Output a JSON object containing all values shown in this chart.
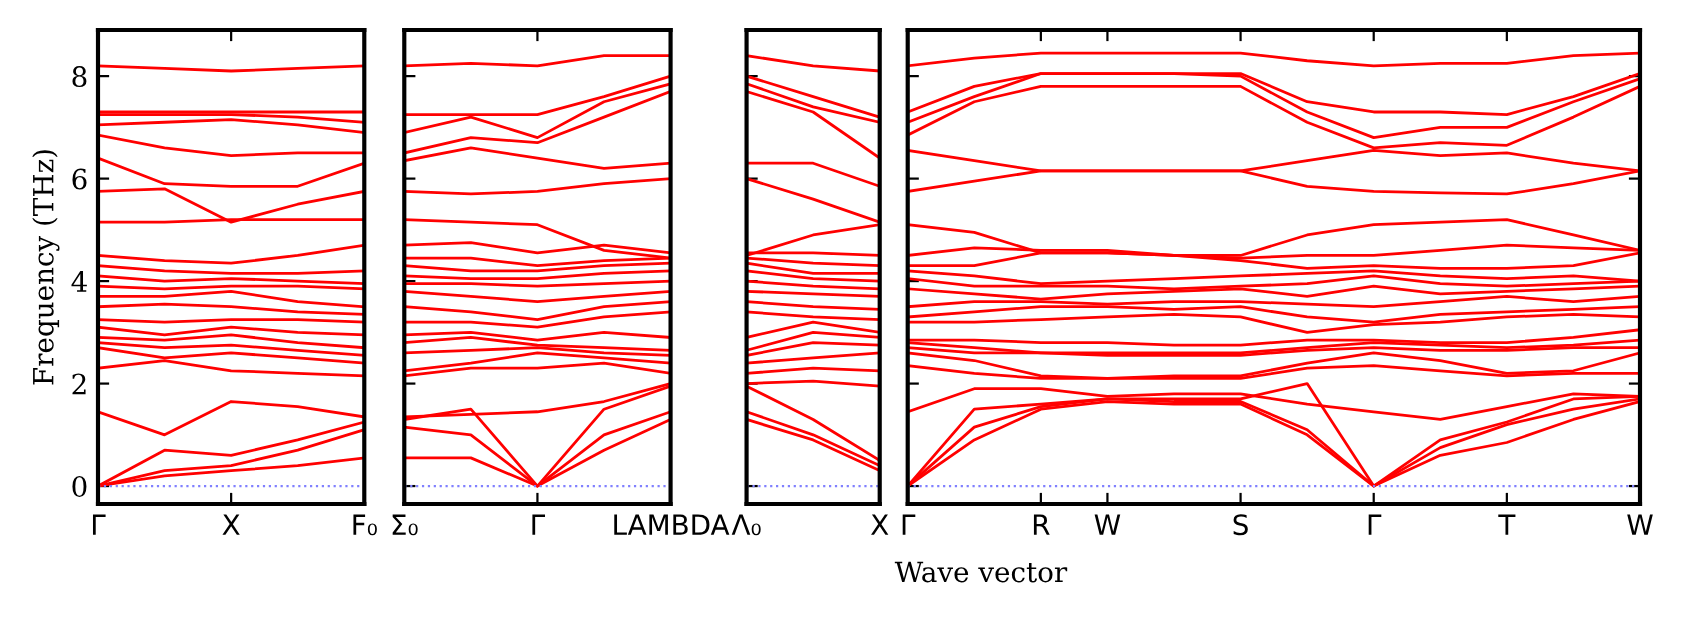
{
  "chart_data": [
    {
      "type": "line",
      "ylabel": "Frequency (THz)",
      "categories": [
        "Γ",
        null,
        "X",
        null,
        "F₀"
      ],
      "ylim": [
        -0.35,
        8.9
      ],
      "yticks": [
        0,
        2,
        4,
        6,
        8
      ],
      "grid": false,
      "legend": false,
      "ref_lines": [
        {
          "axis": "y",
          "value": 0,
          "color": "#8080ff",
          "line_style": "dotted"
        }
      ],
      "series": [
        {
          "color": "#ff0000",
          "values": [
            0,
            0.2,
            0.3,
            0.4,
            0.55
          ]
        },
        {
          "color": "#ff0000",
          "values": [
            0,
            0.3,
            0.4,
            0.7,
            1.1
          ]
        },
        {
          "color": "#ff0000",
          "values": [
            0,
            0.7,
            0.6,
            0.9,
            1.25
          ]
        },
        {
          "color": "#ff0000",
          "values": [
            1.45,
            1.0,
            1.65,
            1.55,
            1.35
          ]
        },
        {
          "color": "#ff0000",
          "values": [
            2.3,
            2.45,
            2.25,
            2.2,
            2.15
          ]
        },
        {
          "color": "#ff0000",
          "values": [
            2.7,
            2.5,
            2.6,
            2.5,
            2.4
          ]
        },
        {
          "color": "#ff0000",
          "values": [
            2.8,
            2.7,
            2.75,
            2.65,
            2.55
          ]
        },
        {
          "color": "#ff0000",
          "values": [
            2.9,
            2.85,
            2.95,
            2.8,
            2.7
          ]
        },
        {
          "color": "#ff0000",
          "values": [
            3.1,
            2.95,
            3.1,
            3.0,
            2.95
          ]
        },
        {
          "color": "#ff0000",
          "values": [
            3.25,
            3.2,
            3.25,
            3.25,
            3.2
          ]
        },
        {
          "color": "#ff0000",
          "values": [
            3.5,
            3.55,
            3.5,
            3.4,
            3.35
          ]
        },
        {
          "color": "#ff0000",
          "values": [
            3.7,
            3.7,
            3.8,
            3.6,
            3.5
          ]
        },
        {
          "color": "#ff0000",
          "values": [
            3.9,
            3.85,
            3.9,
            3.9,
            3.85
          ]
        },
        {
          "color": "#ff0000",
          "values": [
            4.1,
            4.0,
            4.05,
            4.0,
            3.95
          ]
        },
        {
          "color": "#ff0000",
          "values": [
            4.3,
            4.2,
            4.15,
            4.15,
            4.2
          ]
        },
        {
          "color": "#ff0000",
          "values": [
            4.5,
            4.4,
            4.35,
            4.5,
            4.7
          ]
        },
        {
          "color": "#ff0000",
          "values": [
            5.15,
            5.15,
            5.2,
            5.2,
            5.2
          ]
        },
        {
          "color": "#ff0000",
          "values": [
            5.75,
            5.8,
            5.15,
            5.5,
            5.75
          ]
        },
        {
          "color": "#ff0000",
          "values": [
            6.4,
            5.9,
            5.85,
            5.85,
            6.3
          ]
        },
        {
          "color": "#ff0000",
          "values": [
            6.85,
            6.6,
            6.45,
            6.5,
            6.5
          ]
        },
        {
          "color": "#ff0000",
          "values": [
            7.05,
            7.1,
            7.15,
            7.05,
            6.9
          ]
        },
        {
          "color": "#ff0000",
          "values": [
            7.25,
            7.25,
            7.25,
            7.2,
            7.1
          ]
        },
        {
          "color": "#ff0000",
          "values": [
            7.3,
            7.3,
            7.3,
            7.3,
            7.3
          ]
        },
        {
          "color": "#ff0000",
          "values": [
            8.2,
            8.15,
            8.1,
            8.15,
            8.2
          ]
        }
      ]
    },
    {
      "type": "line",
      "categories": [
        "Σ₀",
        null,
        "Γ",
        null,
        "LAMBDA"
      ],
      "ylim": [
        -0.35,
        8.9
      ],
      "yticks": [
        {
          "value": 0,
          "label": null
        },
        {
          "value": 2,
          "label": null
        },
        {
          "value": 4,
          "label": null
        },
        {
          "value": 6,
          "label": null
        },
        {
          "value": 8,
          "label": null
        }
      ],
      "tick_labels": "x",
      "grid": false,
      "legend": false,
      "ref_lines": [
        {
          "axis": "y",
          "value": 0,
          "color": "#8080ff",
          "line_style": "dotted"
        }
      ],
      "series": [
        {
          "color": "#ff0000",
          "values": [
            0.55,
            0.55,
            0,
            0.7,
            1.3
          ]
        },
        {
          "color": "#ff0000",
          "values": [
            1.15,
            1.0,
            0,
            1.0,
            1.45
          ]
        },
        {
          "color": "#ff0000",
          "values": [
            1.3,
            1.5,
            0,
            1.5,
            1.95
          ]
        },
        {
          "color": "#ff0000",
          "values": [
            1.35,
            1.4,
            1.45,
            1.65,
            2.0
          ]
        },
        {
          "color": "#ff0000",
          "values": [
            2.15,
            2.3,
            2.3,
            2.4,
            2.2
          ]
        },
        {
          "color": "#ff0000",
          "values": [
            2.25,
            2.4,
            2.6,
            2.5,
            2.4
          ]
        },
        {
          "color": "#ff0000",
          "values": [
            2.6,
            2.65,
            2.7,
            2.6,
            2.55
          ]
        },
        {
          "color": "#ff0000",
          "values": [
            2.8,
            2.9,
            2.75,
            2.7,
            2.65
          ]
        },
        {
          "color": "#ff0000",
          "values": [
            2.95,
            3.0,
            2.85,
            3.0,
            2.9
          ]
        },
        {
          "color": "#ff0000",
          "values": [
            3.2,
            3.2,
            3.1,
            3.3,
            3.4
          ]
        },
        {
          "color": "#ff0000",
          "values": [
            3.5,
            3.4,
            3.25,
            3.5,
            3.6
          ]
        },
        {
          "color": "#ff0000",
          "values": [
            3.8,
            3.7,
            3.6,
            3.7,
            3.8
          ]
        },
        {
          "color": "#ff0000",
          "values": [
            3.95,
            3.95,
            3.9,
            3.95,
            4.0
          ]
        },
        {
          "color": "#ff0000",
          "values": [
            4.1,
            4.05,
            4.05,
            4.15,
            4.2
          ]
        },
        {
          "color": "#ff0000",
          "values": [
            4.3,
            4.2,
            4.2,
            4.3,
            4.35
          ]
        },
        {
          "color": "#ff0000",
          "values": [
            4.45,
            4.45,
            4.3,
            4.4,
            4.45
          ]
        },
        {
          "color": "#ff0000",
          "values": [
            4.7,
            4.75,
            4.55,
            4.7,
            4.55
          ]
        },
        {
          "color": "#ff0000",
          "values": [
            5.2,
            5.15,
            5.1,
            4.6,
            4.45
          ]
        },
        {
          "color": "#ff0000",
          "values": [
            5.75,
            5.7,
            5.75,
            5.9,
            6.0
          ]
        },
        {
          "color": "#ff0000",
          "values": [
            6.35,
            6.6,
            6.4,
            6.2,
            6.3
          ]
        },
        {
          "color": "#ff0000",
          "values": [
            6.5,
            6.8,
            6.7,
            7.2,
            7.7
          ]
        },
        {
          "color": "#ff0000",
          "values": [
            6.9,
            7.2,
            6.8,
            7.5,
            7.85
          ]
        },
        {
          "color": "#ff0000",
          "values": [
            7.25,
            7.25,
            7.25,
            7.6,
            8.0
          ]
        },
        {
          "color": "#ff0000",
          "values": [
            8.2,
            8.25,
            8.2,
            8.4,
            8.4
          ]
        }
      ]
    },
    {
      "type": "line",
      "categories": [
        "Λ₀",
        null,
        "X"
      ],
      "ylim": [
        -0.35,
        8.9
      ],
      "yticks": [
        {
          "value": 0,
          "label": null
        },
        {
          "value": 2,
          "label": null
        },
        {
          "value": 4,
          "label": null
        },
        {
          "value": 6,
          "label": null
        },
        {
          "value": 8,
          "label": null
        }
      ],
      "tick_labels": "x",
      "grid": false,
      "legend": false,
      "ref_lines": [
        {
          "axis": "y",
          "value": 0,
          "color": "#8080ff",
          "line_style": "dotted"
        }
      ],
      "series": [
        {
          "color": "#ff0000",
          "values": [
            1.3,
            0.9,
            0.3
          ]
        },
        {
          "color": "#ff0000",
          "values": [
            1.45,
            1.0,
            0.4
          ]
        },
        {
          "color": "#ff0000",
          "values": [
            1.95,
            1.3,
            0.5
          ]
        },
        {
          "color": "#ff0000",
          "values": [
            2.0,
            2.05,
            1.95
          ]
        },
        {
          "color": "#ff0000",
          "values": [
            2.2,
            2.3,
            2.25
          ]
        },
        {
          "color": "#ff0000",
          "values": [
            2.4,
            2.5,
            2.6
          ]
        },
        {
          "color": "#ff0000",
          "values": [
            2.55,
            2.8,
            2.75
          ]
        },
        {
          "color": "#ff0000",
          "values": [
            2.65,
            3.0,
            2.9
          ]
        },
        {
          "color": "#ff0000",
          "values": [
            2.9,
            3.2,
            3.0
          ]
        },
        {
          "color": "#ff0000",
          "values": [
            3.4,
            3.3,
            3.25
          ]
        },
        {
          "color": "#ff0000",
          "values": [
            3.6,
            3.5,
            3.45
          ]
        },
        {
          "color": "#ff0000",
          "values": [
            3.8,
            3.75,
            3.7
          ]
        },
        {
          "color": "#ff0000",
          "values": [
            4.0,
            3.9,
            3.85
          ]
        },
        {
          "color": "#ff0000",
          "values": [
            4.2,
            4.05,
            4.0
          ]
        },
        {
          "color": "#ff0000",
          "values": [
            4.35,
            4.15,
            4.15
          ]
        },
        {
          "color": "#ff0000",
          "values": [
            4.45,
            4.35,
            4.3
          ]
        },
        {
          "color": "#ff0000",
          "values": [
            4.55,
            4.55,
            4.5
          ]
        },
        {
          "color": "#ff0000",
          "values": [
            4.5,
            4.9,
            5.1
          ]
        },
        {
          "color": "#ff0000",
          "values": [
            6.0,
            5.6,
            5.15
          ]
        },
        {
          "color": "#ff0000",
          "values": [
            6.3,
            6.3,
            5.85
          ]
        },
        {
          "color": "#ff0000",
          "values": [
            7.7,
            7.3,
            6.4
          ]
        },
        {
          "color": "#ff0000",
          "values": [
            7.85,
            7.4,
            7.1
          ]
        },
        {
          "color": "#ff0000",
          "values": [
            8.0,
            7.6,
            7.2
          ]
        },
        {
          "color": "#ff0000",
          "values": [
            8.4,
            8.2,
            8.1
          ]
        }
      ]
    },
    {
      "type": "line",
      "xlabel": "Wave vector",
      "categories": [
        "Γ",
        null,
        "R",
        "W",
        null,
        "S",
        null,
        "Γ",
        null,
        "T",
        null,
        "W"
      ],
      "ylim": [
        -0.35,
        8.9
      ],
      "yticks": [
        {
          "value": 0,
          "label": null
        },
        {
          "value": 2,
          "label": null
        },
        {
          "value": 4,
          "label": null
        },
        {
          "value": 6,
          "label": null
        },
        {
          "value": 8,
          "label": null
        }
      ],
      "tick_labels": "x",
      "grid": false,
      "legend": false,
      "ref_lines": [
        {
          "axis": "y",
          "value": 0,
          "color": "#8080ff",
          "line_style": "dotted"
        }
      ],
      "series": [
        {
          "color": "#ff0000",
          "values": [
            0,
            0.9,
            1.5,
            1.65,
            1.6,
            1.6,
            1.0,
            0,
            0.6,
            0.85,
            1.3,
            1.65
          ]
        },
        {
          "color": "#ff0000",
          "values": [
            0,
            1.15,
            1.55,
            1.7,
            1.65,
            1.65,
            1.1,
            0,
            0.75,
            1.2,
            1.5,
            1.7
          ]
        },
        {
          "color": "#ff0000",
          "values": [
            0,
            1.5,
            1.6,
            1.7,
            1.7,
            1.7,
            2.0,
            0,
            0.9,
            1.25,
            1.7,
            1.75
          ]
        },
        {
          "color": "#ff0000",
          "values": [
            1.45,
            1.9,
            1.9,
            1.75,
            1.8,
            1.8,
            1.6,
            1.45,
            1.3,
            1.55,
            1.8,
            1.75
          ]
        },
        {
          "color": "#ff0000",
          "values": [
            2.35,
            2.2,
            2.1,
            2.1,
            2.1,
            2.1,
            2.3,
            2.35,
            2.25,
            2.15,
            2.2,
            2.2
          ]
        },
        {
          "color": "#ff0000",
          "values": [
            2.6,
            2.45,
            2.15,
            2.1,
            2.15,
            2.15,
            2.4,
            2.6,
            2.45,
            2.2,
            2.25,
            2.6
          ]
        },
        {
          "color": "#ff0000",
          "values": [
            2.7,
            2.6,
            2.6,
            2.55,
            2.55,
            2.55,
            2.65,
            2.7,
            2.65,
            2.65,
            2.7,
            2.7
          ]
        },
        {
          "color": "#ff0000",
          "values": [
            2.8,
            2.7,
            2.6,
            2.6,
            2.6,
            2.6,
            2.7,
            2.8,
            2.75,
            2.7,
            2.75,
            2.85
          ]
        },
        {
          "color": "#ff0000",
          "values": [
            2.85,
            2.85,
            2.8,
            2.8,
            2.75,
            2.75,
            2.85,
            2.85,
            2.8,
            2.8,
            2.9,
            3.05
          ]
        },
        {
          "color": "#ff0000",
          "values": [
            3.2,
            3.2,
            3.25,
            3.3,
            3.35,
            3.3,
            3.0,
            3.15,
            3.2,
            3.3,
            3.35,
            3.3
          ]
        },
        {
          "color": "#ff0000",
          "values": [
            3.3,
            3.4,
            3.5,
            3.5,
            3.45,
            3.5,
            3.3,
            3.2,
            3.35,
            3.4,
            3.45,
            3.5
          ]
        },
        {
          "color": "#ff0000",
          "values": [
            3.5,
            3.6,
            3.6,
            3.55,
            3.6,
            3.6,
            3.55,
            3.5,
            3.6,
            3.7,
            3.6,
            3.7
          ]
        },
        {
          "color": "#ff0000",
          "values": [
            3.85,
            3.75,
            3.65,
            3.75,
            3.8,
            3.85,
            3.7,
            3.9,
            3.75,
            3.8,
            3.85,
            3.9
          ]
        },
        {
          "color": "#ff0000",
          "values": [
            4.05,
            3.9,
            3.9,
            3.9,
            3.85,
            3.9,
            3.95,
            4.1,
            3.95,
            3.9,
            3.95,
            4.0
          ]
        },
        {
          "color": "#ff0000",
          "values": [
            4.2,
            4.1,
            3.95,
            4.0,
            4.05,
            4.1,
            4.15,
            4.2,
            4.1,
            4.05,
            4.1,
            4.0
          ]
        },
        {
          "color": "#ff0000",
          "values": [
            4.3,
            4.3,
            4.55,
            4.55,
            4.5,
            4.4,
            4.25,
            4.3,
            4.25,
            4.25,
            4.3,
            4.55
          ]
        },
        {
          "color": "#ff0000",
          "values": [
            4.5,
            4.65,
            4.6,
            4.6,
            4.5,
            4.45,
            4.5,
            4.5,
            4.6,
            4.7,
            4.65,
            4.6
          ]
        },
        {
          "color": "#ff0000",
          "values": [
            5.1,
            4.95,
            4.55,
            4.55,
            4.5,
            4.5,
            4.9,
            5.1,
            5.15,
            5.2,
            4.9,
            4.6
          ]
        },
        {
          "color": "#ff0000",
          "values": [
            5.75,
            5.95,
            6.15,
            6.15,
            6.15,
            6.15,
            5.85,
            5.75,
            5.72,
            5.7,
            5.9,
            6.15
          ]
        },
        {
          "color": "#ff0000",
          "values": [
            6.55,
            6.35,
            6.15,
            6.15,
            6.15,
            6.15,
            6.35,
            6.55,
            6.45,
            6.5,
            6.3,
            6.15
          ]
        },
        {
          "color": "#ff0000",
          "values": [
            6.85,
            7.5,
            7.8,
            7.8,
            7.8,
            7.8,
            7.1,
            6.6,
            6.7,
            6.65,
            7.2,
            7.8
          ]
        },
        {
          "color": "#ff0000",
          "values": [
            7.1,
            7.6,
            8.05,
            8.05,
            8.05,
            8.0,
            7.3,
            6.8,
            7.0,
            7.0,
            7.5,
            7.95
          ]
        },
        {
          "color": "#ff0000",
          "values": [
            7.3,
            7.8,
            8.05,
            8.05,
            8.05,
            8.05,
            7.5,
            7.3,
            7.3,
            7.25,
            7.6,
            8.05
          ]
        },
        {
          "color": "#ff0000",
          "values": [
            8.2,
            8.35,
            8.45,
            8.45,
            8.45,
            8.45,
            8.3,
            8.2,
            8.25,
            8.25,
            8.4,
            8.45
          ]
        }
      ]
    }
  ]
}
